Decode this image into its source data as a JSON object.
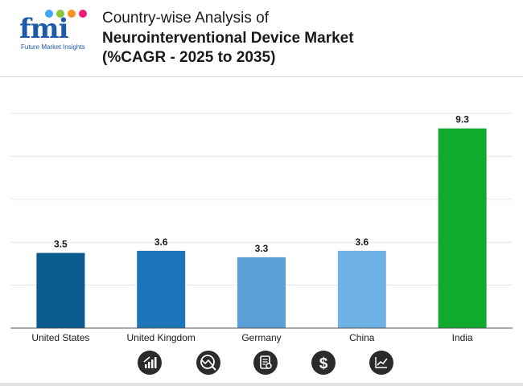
{
  "header": {
    "title_line1": "Country-wise Analysis of",
    "title_line2": "Neurointerventional Device Market",
    "title_line3": "(%CAGR - 2025 to 2035)"
  },
  "logo": {
    "wordmark": "fmi",
    "tagline": "Future Market Insights",
    "brand_color": "#1f5aa8",
    "dot_colors": [
      "#3fa9f5",
      "#8cc63f",
      "#f7931e",
      "#ed1e79"
    ]
  },
  "chart_data": {
    "type": "bar",
    "categories": [
      "United States",
      "United Kingdom",
      "Germany",
      "China",
      "India"
    ],
    "values": [
      3.5,
      3.6,
      3.3,
      3.6,
      9.3
    ],
    "value_labels": [
      "3.5",
      "3.6",
      "3.3",
      "3.6",
      "9.3"
    ],
    "bar_colors": [
      "#0b5a8f",
      "#1b75b8",
      "#5b9fd8",
      "#6fb3e6",
      "#0faa2e"
    ],
    "ylim": [
      0,
      10
    ],
    "grid": true,
    "legend": "none"
  },
  "footer_icons": [
    "bar-growth-icon",
    "trend-circle-icon",
    "document-search-icon",
    "dollar-icon",
    "line-chart-icon"
  ]
}
